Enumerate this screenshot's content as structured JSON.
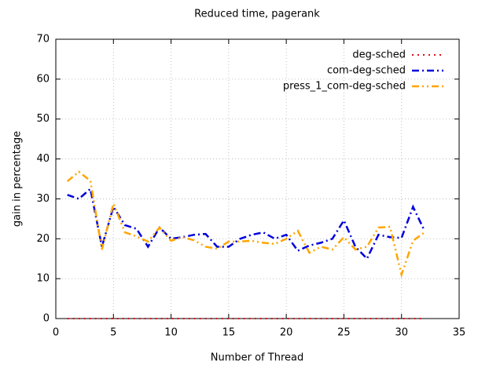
{
  "chart_data": {
    "type": "line",
    "title": "Reduced time, pagerank",
    "x_label": "Number of Thread",
    "y_label": "gain in percentage",
    "x": [
      1,
      2,
      3,
      4,
      5,
      6,
      7,
      8,
      9,
      10,
      11,
      12,
      13,
      14,
      15,
      16,
      17,
      18,
      19,
      20,
      21,
      22,
      23,
      24,
      25,
      26,
      27,
      28,
      29,
      30,
      31,
      32
    ],
    "series": [
      {
        "name": "deg-sched",
        "color": "#e0101e",
        "values": [
          0,
          0,
          0,
          0,
          0,
          0,
          0,
          0,
          0,
          0,
          0,
          0,
          0,
          0,
          0,
          0,
          0,
          0,
          0,
          0,
          0,
          0,
          0,
          0,
          0,
          0,
          0,
          0,
          0,
          0,
          0,
          0
        ]
      },
      {
        "name": "com-deg-sched",
        "color": "#0000dd",
        "values": [
          31,
          30,
          32.5,
          18,
          28,
          23.4,
          22.5,
          18,
          22.8,
          20,
          20.4,
          21,
          21.2,
          18,
          18,
          20,
          21,
          21.6,
          20,
          21,
          17,
          18.3,
          19,
          20,
          24.6,
          18,
          15,
          21,
          20.4,
          20.2,
          28,
          22
        ]
      },
      {
        "name": "press_1_com-deg-sched",
        "color": "#ffa500",
        "values": [
          34.4,
          36.8,
          34.5,
          17.3,
          28.8,
          21.6,
          20.6,
          19.3,
          22.8,
          19.5,
          20.4,
          19.6,
          18,
          17.5,
          19.3,
          19.3,
          19.5,
          19,
          18.7,
          20,
          22,
          16.5,
          18,
          17.3,
          20.4,
          17.3,
          18,
          22.8,
          23,
          11,
          19.5,
          21.6
        ]
      }
    ],
    "xlim": [
      0,
      35
    ],
    "xticks": [
      0,
      5,
      10,
      15,
      20,
      25,
      30,
      35
    ],
    "ylim": [
      0,
      70
    ],
    "yticks": [
      0,
      10,
      20,
      30,
      40,
      50,
      60,
      70
    ],
    "grid": true,
    "legend": "top-right"
  }
}
